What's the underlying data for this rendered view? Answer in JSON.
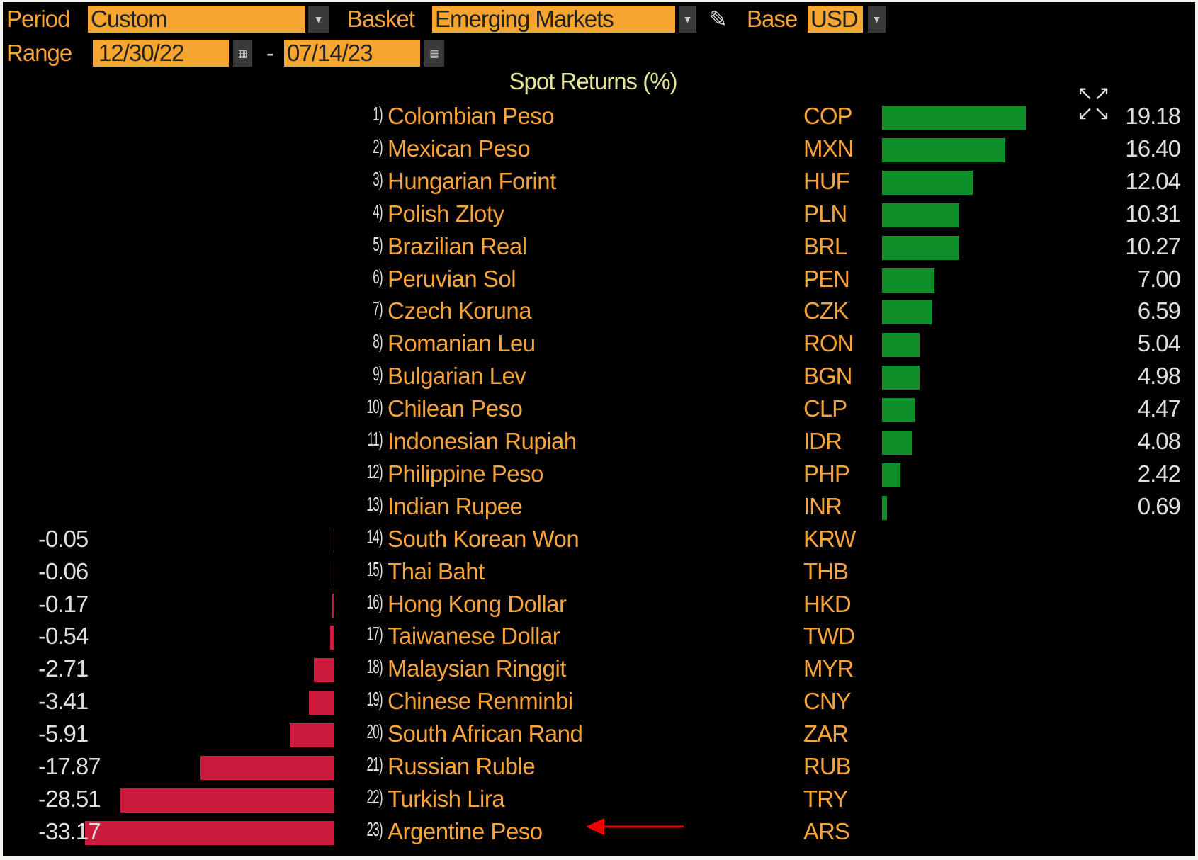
{
  "controls": {
    "period_label": "Period",
    "period_value": "Custom",
    "basket_label": "Basket",
    "basket_value": "Emerging Markets",
    "base_label": "Base",
    "base_value": "USD",
    "range_label": "Range",
    "range_start": "12/30/22",
    "range_sep": "-",
    "range_end": "07/14/23"
  },
  "colors": {
    "positive": "#0f8f2a",
    "negative": "#cc1a3c",
    "accent": "#f7a531"
  },
  "chart_data": {
    "type": "bar",
    "orientation": "horizontal",
    "title": "Spot Returns (%)",
    "categories": [
      "Colombian Peso",
      "Mexican Peso",
      "Hungarian Forint",
      "Polish Zloty",
      "Brazilian Real",
      "Peruvian Sol",
      "Czech Koruna",
      "Romanian Leu",
      "Bulgarian Lev",
      "Chilean Peso",
      "Indonesian Rupiah",
      "Philippine Peso",
      "Indian Rupee",
      "South Korean Won",
      "Thai Baht",
      "Hong Kong Dollar",
      "Taiwanese Dollar",
      "Malaysian Ringgit",
      "Chinese Renminbi",
      "South African Rand",
      "Russian Ruble",
      "Turkish Lira",
      "Argentine Peso"
    ],
    "ranks": [
      "1)",
      "2)",
      "3)",
      "4)",
      "5)",
      "6)",
      "7)",
      "8)",
      "9)",
      "10)",
      "11)",
      "12)",
      "13)",
      "14)",
      "15)",
      "16)",
      "17)",
      "18)",
      "19)",
      "20)",
      "21)",
      "22)",
      "23)"
    ],
    "codes": [
      "COP",
      "MXN",
      "HUF",
      "PLN",
      "BRL",
      "PEN",
      "CZK",
      "RON",
      "BGN",
      "CLP",
      "IDR",
      "PHP",
      "INR",
      "KRW",
      "THB",
      "HKD",
      "TWD",
      "MYR",
      "CNY",
      "ZAR",
      "RUB",
      "TRY",
      "ARS"
    ],
    "values": [
      19.18,
      16.4,
      12.04,
      10.31,
      10.27,
      7.0,
      6.59,
      5.04,
      4.98,
      4.47,
      4.08,
      2.42,
      0.69,
      -0.05,
      -0.06,
      -0.17,
      -0.54,
      -2.71,
      -3.41,
      -5.91,
      -17.87,
      -28.51,
      -33.17
    ],
    "labels": [
      "19.18",
      "16.40",
      "12.04",
      "10.31",
      "10.27",
      "7.00",
      "6.59",
      "5.04",
      "4.98",
      "4.47",
      "4.08",
      "2.42",
      "0.69",
      "-0.05",
      "-0.06",
      "-0.17",
      "-0.54",
      "-2.71",
      "-3.41",
      "-5.91",
      "-17.87",
      "-28.51",
      "-33.17"
    ],
    "highlight": "Argentine Peso"
  }
}
